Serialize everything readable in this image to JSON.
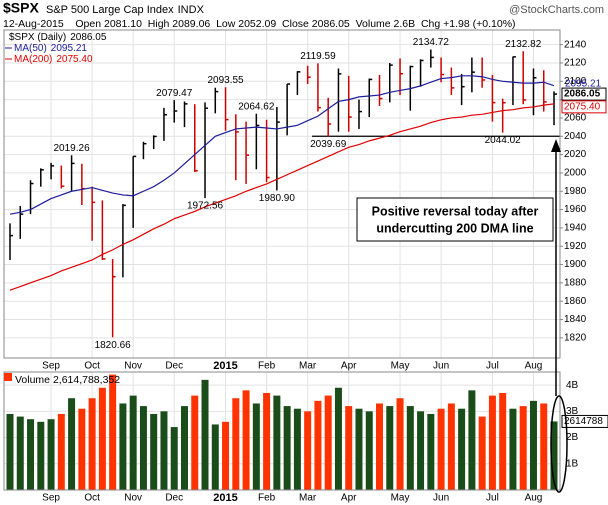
{
  "chart_data": {
    "type": "ohlc",
    "header": {
      "symbol": "$SPX",
      "name": "S&P 500 Large Cap Index",
      "exchange": "INDX",
      "source": "@StockCharts.com",
      "quote": "12-Aug-2015    Open 2081.10  High 2089.06  Low 2052.09  Close 2086.05  Volume 2.6B  Chg +1.98 (+0.10%)"
    },
    "categories": [
      null,
      null,
      null,
      null,
      "Sep",
      null,
      null,
      null,
      "Oct",
      null,
      null,
      null,
      "Nov",
      null,
      null,
      null,
      "Dec",
      null,
      null,
      null,
      null,
      "2015",
      null,
      null,
      null,
      "Feb",
      null,
      null,
      null,
      "Mar",
      null,
      null,
      null,
      "Apr",
      null,
      null,
      null,
      null,
      "May",
      null,
      null,
      null,
      "Jun",
      null,
      null,
      null,
      null,
      "Jul",
      null,
      null,
      null,
      "Aug",
      null,
      null
    ],
    "series": [
      {
        "name": "$SPX (Daily)",
        "color": "#000000",
        "down_color": "#cc0000",
        "values": [
          1931.59,
          1955.06,
          1988.4,
          2003.37,
          2007.71,
          1985.54,
          2010.4,
          1982.85,
          1967.9,
          1906.13,
          1886.76,
          1964.58,
          2018.05,
          2031.92,
          2039.82,
          2063.5,
          2067.56,
          2075.37,
          2002.33,
          2070.65,
          2088.77,
          2058.2,
          2044.81,
          2019.42,
          2051.82,
          1994.99,
          2055.47,
          2096.99,
          2110.3,
          2104.5,
          2071.26,
          2053.4,
          2108.1,
          2061.02,
          2066.96,
          2102.06,
          2081.18,
          2117.69,
          2108.29,
          2116.1,
          2122.73,
          2126.06,
          2107.39,
          2092.83,
          2094.11,
          2109.99,
          2101.49,
          2076.78,
          2076.62,
          2126.64,
          2079.65,
          2103.84,
          2077.57,
          2086.05
        ],
        "high": [
          1945,
          1964,
          1992,
          2005,
          2011,
          2008,
          2019.26,
          2010,
          1985,
          1970,
          1906,
          1966,
          2018.2,
          2034,
          2041,
          2071,
          2079.47,
          2078,
          2075,
          2077,
          2093,
          2093.55,
          2064,
          2056,
          2064.62,
          2058,
          2072,
          2097,
          2111,
          2117,
          2119.59,
          2082,
          2114,
          2106,
          2080,
          2103,
          2107,
          2120,
          2125,
          2117,
          2124,
          2134.72,
          2126,
          2115,
          2108,
          2126,
          2126,
          2107,
          2081,
          2127,
          2132.82,
          2114,
          2112,
          2089.06
        ],
        "low": [
          1905,
          1928,
          1955,
          1985,
          1993,
          1983,
          1980,
          1965,
          1926,
          1905,
          1820.66,
          1886,
          1940,
          2015,
          2026,
          2035,
          2055,
          2050,
          2001,
          1972.56,
          2065,
          2046,
          1992,
          1988,
          2004,
          1990,
          1980.9,
          2041,
          2085,
          2097,
          2067,
          2039.69,
          2045,
          2045,
          2048,
          2061,
          2073,
          2077,
          2085,
          2068,
          2094,
          2115,
          2099,
          2085,
          2074,
          2088,
          2093,
          2056,
          2044.02,
          2074,
          2075,
          2063,
          2067,
          2052.09
        ]
      },
      {
        "name": "MA(50)",
        "color": "#1c1c9c",
        "values": [
          1955,
          1957,
          1960,
          1966,
          1972,
          1976,
          1980,
          1982,
          1984,
          1981,
          1978,
          1976,
          1975,
          1980,
          1985,
          1992,
          2000,
          2010,
          2020,
          2030,
          2040,
          2044,
          2048,
          2049,
          2050,
          2049,
          2048,
          2050,
          2052,
          2057,
          2062,
          2070,
          2078,
          2080,
          2083,
          2084,
          2085,
          2088,
          2090,
          2092,
          2095,
          2099,
          2103,
          2104,
          2106,
          2106,
          2105,
          2102,
          2100,
          2099,
          2098,
          2098,
          2099,
          2095.21
        ]
      },
      {
        "name": "MA(200)",
        "color": "#e00000",
        "last_label": "2075.40",
        "values": [
          1872,
          1876,
          1880,
          1884,
          1888,
          1893,
          1897,
          1901,
          1905,
          1911,
          1916,
          1922,
          1927,
          1933,
          1939,
          1944,
          1950,
          1954,
          1958,
          1963,
          1967,
          1971,
          1975,
          1980,
          1984,
          1988,
          1993,
          1998,
          2003,
          2008,
          2013,
          2018,
          2023,
          2028,
          2031,
          2035,
          2038,
          2041,
          2045,
          2048,
          2051,
          2055,
          2058,
          2060,
          2061,
          2063,
          2064,
          2066,
          2068,
          2069,
          2071,
          2072,
          2074,
          2075.4
        ]
      }
    ],
    "ylim": [
      1798,
      2156
    ],
    "yticks": [
      1820,
      1840,
      1860,
      1880,
      1900,
      1920,
      1940,
      1960,
      1980,
      2000,
      2020,
      2040,
      2060,
      2080,
      2100,
      2120,
      2140
    ],
    "grid": true,
    "annotations": [
      2019.26,
      2079.47,
      2093.55,
      2064.62,
      2119.59,
      2134.72,
      2132.82,
      1820.66,
      1972.56,
      {
        "value": 1980.9,
        "label": "1980.90"
      },
      2039.69,
      2044.02
    ],
    "support_line": 2040,
    "note": [
      "Positive reversal today after",
      "undercutting 200 DMA line"
    ],
    "volume": {
      "label": "Volume 2,614,788,352",
      "last_label": "2614788",
      "up_color": "#1a4d1a",
      "down_color": "#ff3300",
      "values": [
        2.9,
        2.8,
        2.7,
        2.6,
        2.7,
        2.9,
        3.5,
        3.1,
        3.5,
        3.9,
        4.4,
        3.3,
        3.6,
        3.2,
        2.9,
        3.0,
        2.4,
        3.2,
        3.6,
        4.2,
        2.5,
        2.6,
        3.5,
        3.8,
        3.3,
        3.7,
        3.6,
        3.2,
        3.1,
        3.0,
        3.4,
        3.6,
        3.9,
        3.2,
        3.1,
        3.0,
        3.3,
        3.2,
        3.5,
        3.2,
        3.0,
        2.9,
        3.1,
        3.3,
        3.1,
        3.8,
        2.8,
        3.6,
        3.7,
        3.1,
        3.2,
        3.4,
        3.3,
        2.614788352
      ],
      "ylim": [
        0,
        4.5
      ],
      "yticks": [
        {
          "value": 1,
          "label": "1B"
        },
        {
          "value": 2,
          "label": "2B"
        },
        {
          "value": 3,
          "label": "3B"
        },
        {
          "value": 4,
          "label": "4B"
        }
      ]
    }
  }
}
